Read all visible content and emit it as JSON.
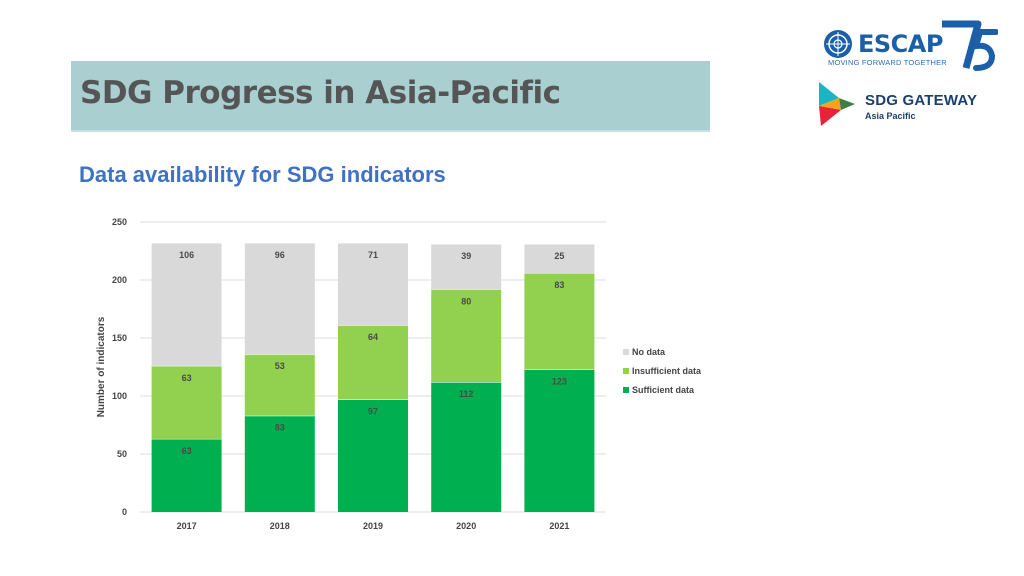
{
  "page": {
    "title": "SDG Progress in Asia-Pacific",
    "subtitle": "Data availability for SDG indicators"
  },
  "logos": {
    "escap": {
      "brand": "ESCAP",
      "tagline": "MOVING FORWARD TOGETHER",
      "mark": "75",
      "brand_color": "#1a5fa8"
    },
    "sdg_gateway": {
      "name": "SDG GATEWAY",
      "region": "Asia Pacific"
    }
  },
  "chart_data": {
    "type": "bar",
    "stacked": true,
    "categories": [
      "2017",
      "2018",
      "2019",
      "2020",
      "2021"
    ],
    "series": [
      {
        "name": "Sufficient data",
        "values": [
          63,
          83,
          97,
          112,
          123
        ],
        "color": "#00b050"
      },
      {
        "name": "Insufficient data",
        "values": [
          63,
          53,
          64,
          80,
          83
        ],
        "color": "#92d050"
      },
      {
        "name": "No data",
        "values": [
          106,
          96,
          71,
          39,
          25
        ],
        "color": "#d9d9d9"
      }
    ],
    "ylabel": "Number of indicators",
    "ylim": [
      0,
      250
    ],
    "yticks": [
      0,
      50,
      100,
      150,
      200,
      250
    ],
    "grid": true,
    "legend": "right"
  }
}
